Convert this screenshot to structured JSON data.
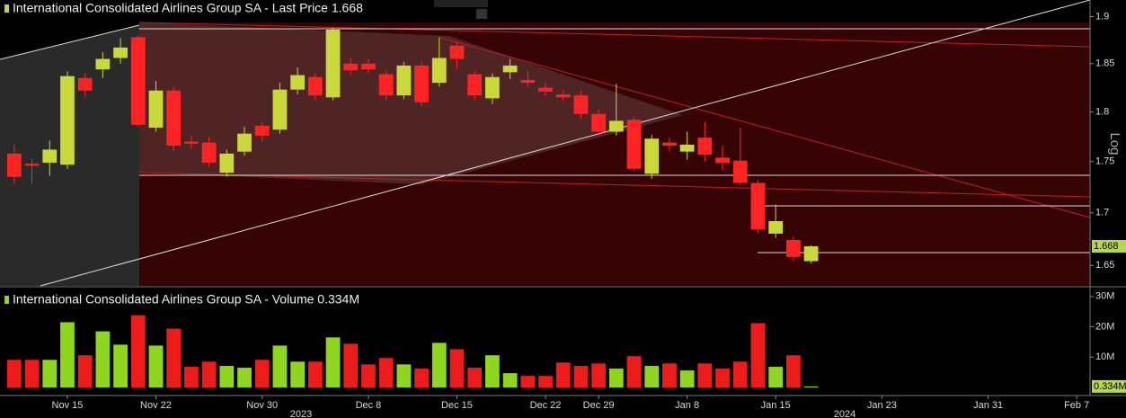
{
  "chart_data": [
    {
      "type": "candlestick",
      "title": "International Consolidated Airlines Group SA - Last Price 1.668",
      "axis_label": "Log",
      "log_scale": true,
      "ylim": [
        1.631,
        1.918
      ],
      "yticks": [
        1.65,
        1.7,
        1.75,
        1.8,
        1.85,
        1.9
      ],
      "last_value": 1.668,
      "up_color": "#c9d93a",
      "down_color": "#ff2424",
      "open": [
        1.758,
        1.748,
        1.749,
        1.747,
        1.835,
        1.844,
        1.856,
        1.878,
        1.784,
        1.822,
        1.77,
        1.769,
        1.739,
        1.76,
        1.786,
        1.782,
        1.823,
        1.836,
        1.815,
        1.85,
        1.85,
        1.839,
        1.817,
        1.848,
        1.83,
        1.869,
        1.839,
        1.814,
        1.841,
        1.833,
        1.825,
        1.818,
        1.817,
        1.798,
        1.78,
        1.792,
        1.738,
        1.769,
        1.76,
        1.774,
        1.754,
        1.751,
        1.729,
        1.68,
        1.674,
        1.654,
        null,
        null,
        null,
        null,
        null,
        null,
        null,
        null,
        null,
        null,
        null,
        null,
        null,
        null,
        null
      ],
      "high": [
        1.767,
        1.753,
        1.771,
        1.842,
        1.84,
        1.862,
        1.877,
        1.88,
        1.832,
        1.826,
        1.776,
        1.775,
        1.762,
        1.785,
        1.79,
        1.83,
        1.846,
        1.84,
        1.888,
        1.856,
        1.855,
        1.843,
        1.852,
        1.852,
        1.878,
        1.873,
        1.843,
        1.84,
        1.855,
        1.843,
        1.83,
        1.822,
        1.822,
        1.803,
        1.829,
        1.796,
        1.777,
        1.774,
        1.78,
        1.79,
        1.766,
        1.784,
        1.732,
        1.708,
        1.677,
        1.669,
        null,
        null,
        null,
        null,
        null,
        null,
        null,
        null,
        null,
        null,
        null,
        null,
        null,
        null,
        null
      ],
      "low": [
        1.728,
        1.728,
        1.736,
        1.743,
        1.815,
        1.835,
        1.85,
        1.785,
        1.78,
        1.76,
        1.763,
        1.745,
        1.735,
        1.756,
        1.77,
        1.778,
        1.818,
        1.812,
        1.812,
        1.838,
        1.84,
        1.812,
        1.813,
        1.806,
        1.826,
        1.845,
        1.812,
        1.808,
        1.834,
        1.825,
        1.816,
        1.811,
        1.793,
        1.776,
        1.776,
        1.74,
        1.733,
        1.76,
        1.752,
        1.75,
        1.742,
        1.727,
        1.68,
        1.676,
        1.654,
        1.652,
        null,
        null,
        null,
        null,
        null,
        null,
        null,
        null,
        null,
        null,
        null,
        null,
        null,
        null,
        null
      ],
      "close": [
        1.735,
        1.746,
        1.762,
        1.837,
        1.822,
        1.855,
        1.867,
        1.787,
        1.822,
        1.766,
        1.768,
        1.749,
        1.758,
        1.778,
        1.776,
        1.823,
        1.838,
        1.817,
        1.886,
        1.843,
        1.844,
        1.817,
        1.848,
        1.81,
        1.856,
        1.855,
        1.817,
        1.836,
        1.848,
        1.83,
        1.821,
        1.815,
        1.798,
        1.78,
        1.791,
        1.743,
        1.773,
        1.766,
        1.767,
        1.757,
        1.749,
        1.729,
        1.684,
        1.692,
        1.658,
        1.668,
        null,
        null,
        null,
        null,
        null,
        null,
        null,
        null,
        null,
        null,
        null,
        null,
        null,
        null,
        null
      ]
    },
    {
      "type": "bar",
      "title": "International Consolidated Airlines Group SA - Volume 0.334M",
      "ylim": [
        0,
        32.6
      ],
      "yticks": [
        {
          "value": 10,
          "label": "10M"
        },
        {
          "value": 20,
          "label": "20M"
        },
        {
          "value": 30,
          "label": "30M"
        }
      ],
      "last_value": {
        "value": 0.334,
        "label": "0.334M"
      },
      "up_color": "#8fd61f",
      "down_color": "#ee1b1b",
      "years": [
        "2023",
        "2024"
      ],
      "categories": [
        null,
        null,
        null,
        "Nov 15",
        null,
        null,
        null,
        null,
        "Nov 22",
        null,
        null,
        null,
        null,
        null,
        "Nov 30",
        null,
        null,
        null,
        null,
        null,
        "Dec 8",
        null,
        null,
        null,
        null,
        "Dec 15",
        null,
        null,
        null,
        null,
        "Dec 22",
        null,
        null,
        "Dec 29",
        null,
        null,
        null,
        null,
        "Jan 8",
        null,
        null,
        null,
        null,
        "Jan 15",
        null,
        null,
        null,
        null,
        null,
        "Jan 23",
        null,
        null,
        null,
        null,
        null,
        "Jan 31",
        null,
        null,
        null,
        null,
        "Feb 7"
      ],
      "values": [
        9.1,
        9.1,
        9.1,
        21.5,
        10.6,
        18.5,
        14.1,
        23.8,
        13.8,
        19.4,
        6.8,
        8.5,
        7.1,
        6.5,
        9.1,
        13.8,
        8.5,
        8.5,
        16.5,
        14.4,
        7.6,
        9.7,
        7.6,
        6.2,
        14.7,
        12.6,
        6.5,
        10.6,
        4.7,
        3.8,
        3.8,
        8.2,
        7.1,
        7.9,
        6.2,
        10.3,
        7.1,
        7.9,
        5.6,
        7.9,
        6.2,
        8.5,
        21.2,
        6.8,
        10.6,
        0.334,
        null,
        null,
        null,
        null,
        null,
        null,
        null,
        null,
        null,
        null,
        null,
        null,
        null,
        null,
        null
      ]
    }
  ]
}
